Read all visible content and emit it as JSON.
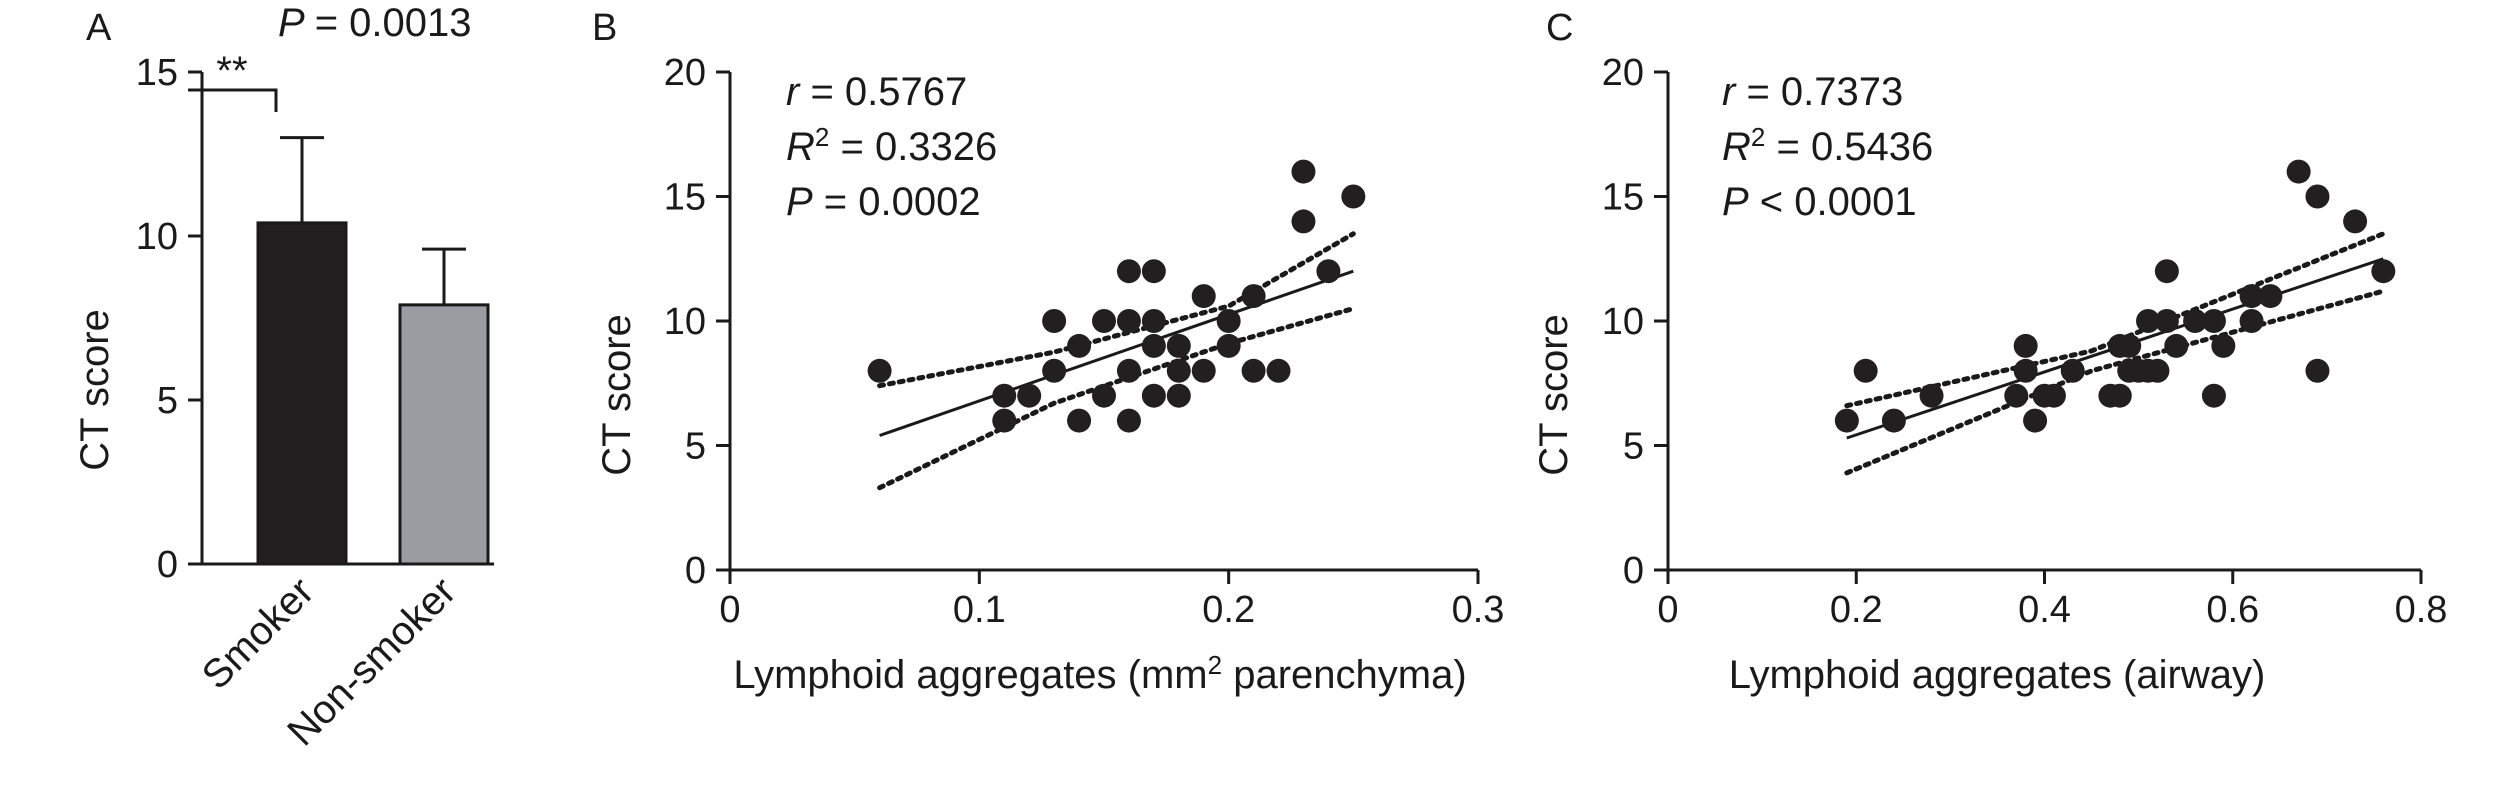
{
  "chart_data": [
    {
      "panel": "A",
      "type": "bar",
      "annotation_p": "P",
      "annotation_p_value": "= 0.0013",
      "significance": "**",
      "ylabel": "CT score",
      "ylim": [
        0,
        15
      ],
      "yticks": [
        0,
        5,
        10,
        15
      ],
      "categories": [
        "Smoker",
        "Non-smoker"
      ],
      "values": [
        10.4,
        7.9
      ],
      "errors_upper": [
        13.0,
        9.6
      ],
      "colors": [
        "#231f20",
        "#9a9ca2"
      ]
    },
    {
      "panel": "B",
      "type": "scatter",
      "xlabel_main": "Lymphoid aggregates (mm",
      "xlabel_sup": "2",
      "xlabel_tail": " parenchyma)",
      "ylabel": "CT score",
      "xlim": [
        0,
        0.3
      ],
      "ylim": [
        0,
        20
      ],
      "xticks": [
        "0",
        "0.1",
        "0.2",
        "0.3"
      ],
      "yticks": [
        "0",
        "5",
        "10",
        "15",
        "20"
      ],
      "stats": [
        {
          "sym": "r",
          "sup": "",
          "val": " = 0.5767"
        },
        {
          "sym": "R",
          "sup": "2",
          "val": " = 0.3326"
        },
        {
          "sym": "P",
          "sup": "",
          "val": " = 0.0002"
        }
      ],
      "points": [
        [
          0.06,
          8
        ],
        [
          0.11,
          7
        ],
        [
          0.11,
          6
        ],
        [
          0.12,
          7
        ],
        [
          0.13,
          8
        ],
        [
          0.13,
          10
        ],
        [
          0.14,
          9
        ],
        [
          0.14,
          6
        ],
        [
          0.15,
          10
        ],
        [
          0.15,
          7
        ],
        [
          0.16,
          12
        ],
        [
          0.16,
          10
        ],
        [
          0.16,
          8
        ],
        [
          0.16,
          6
        ],
        [
          0.17,
          12
        ],
        [
          0.17,
          10
        ],
        [
          0.17,
          9
        ],
        [
          0.17,
          7
        ],
        [
          0.18,
          9
        ],
        [
          0.18,
          8
        ],
        [
          0.18,
          7
        ],
        [
          0.19,
          11
        ],
        [
          0.19,
          8
        ],
        [
          0.2,
          10
        ],
        [
          0.2,
          9
        ],
        [
          0.21,
          11
        ],
        [
          0.21,
          8
        ],
        [
          0.22,
          8
        ],
        [
          0.23,
          16
        ],
        [
          0.23,
          14
        ],
        [
          0.24,
          12
        ],
        [
          0.25,
          15
        ]
      ],
      "fit": [
        [
          0.06,
          5.4
        ],
        [
          0.25,
          12.0
        ]
      ],
      "ci_upper": [
        [
          0.06,
          7.4
        ],
        [
          0.13,
          8.75
        ],
        [
          0.2,
          10.6
        ],
        [
          0.25,
          13.5
        ]
      ],
      "ci_lower": [
        [
          0.06,
          3.3
        ],
        [
          0.13,
          6.7
        ],
        [
          0.2,
          9.1
        ],
        [
          0.25,
          10.5
        ]
      ]
    },
    {
      "panel": "C",
      "type": "scatter",
      "xlabel_main": "Lymphoid aggregates (airway)",
      "xlabel_sup": "",
      "xlabel_tail": "",
      "ylabel": "CT score",
      "xlim": [
        0,
        0.8
      ],
      "ylim": [
        0,
        20
      ],
      "xticks": [
        "0",
        "0.2",
        "0.4",
        "0.6",
        "0.8"
      ],
      "yticks": [
        "0",
        "5",
        "10",
        "15",
        "20"
      ],
      "stats": [
        {
          "sym": "r",
          "sup": "",
          "val": " = 0.7373"
        },
        {
          "sym": "R",
          "sup": "2",
          "val": " = 0.5436"
        },
        {
          "sym": "P",
          "sup": "",
          "val": " < 0.0001"
        }
      ],
      "points": [
        [
          0.19,
          6
        ],
        [
          0.21,
          8
        ],
        [
          0.24,
          6
        ],
        [
          0.28,
          7
        ],
        [
          0.37,
          7
        ],
        [
          0.38,
          9
        ],
        [
          0.38,
          8
        ],
        [
          0.39,
          6
        ],
        [
          0.4,
          7
        ],
        [
          0.41,
          7
        ],
        [
          0.43,
          8
        ],
        [
          0.47,
          7
        ],
        [
          0.48,
          9
        ],
        [
          0.48,
          7
        ],
        [
          0.49,
          9
        ],
        [
          0.49,
          8
        ],
        [
          0.5,
          8
        ],
        [
          0.51,
          10
        ],
        [
          0.51,
          8
        ],
        [
          0.52,
          8
        ],
        [
          0.53,
          12
        ],
        [
          0.53,
          10
        ],
        [
          0.54,
          9
        ],
        [
          0.56,
          10
        ],
        [
          0.58,
          10
        ],
        [
          0.58,
          7
        ],
        [
          0.59,
          9
        ],
        [
          0.62,
          11
        ],
        [
          0.62,
          10
        ],
        [
          0.64,
          11
        ],
        [
          0.67,
          16
        ],
        [
          0.69,
          15
        ],
        [
          0.69,
          8
        ],
        [
          0.73,
          14
        ],
        [
          0.76,
          12
        ]
      ],
      "fit": [
        [
          0.19,
          5.3
        ],
        [
          0.76,
          12.5
        ]
      ],
      "ci_upper": [
        [
          0.19,
          6.6
        ],
        [
          0.45,
          8.8
        ],
        [
          0.76,
          13.5
        ]
      ],
      "ci_lower": [
        [
          0.19,
          3.9
        ],
        [
          0.45,
          8.0
        ],
        [
          0.76,
          11.2
        ]
      ]
    }
  ]
}
